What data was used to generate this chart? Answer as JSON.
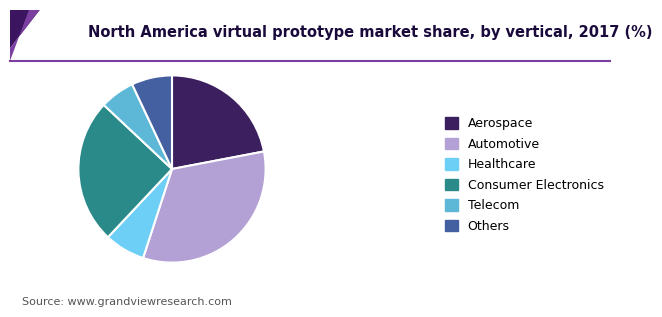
{
  "title": "North America virtual prototype market share, by vertical, 2017 (%)",
  "source": "Source: www.grandviewresearch.com",
  "labels": [
    "Aerospace",
    "Automotive",
    "Healthcare",
    "Consumer Electronics",
    "Telecom",
    "Others"
  ],
  "values": [
    22,
    33,
    7,
    25,
    6,
    7
  ],
  "colors": [
    "#3b1f5e",
    "#b3a0d4",
    "#6dcff6",
    "#2a8a8a",
    "#5db8d8",
    "#4560a0"
  ],
  "startangle": 90,
  "background_color": "#ffffff",
  "title_color": "#1a0a3c",
  "header_line_color": "#7b3fa0",
  "source_fontsize": 8,
  "title_fontsize": 10.5,
  "legend_fontsize": 9,
  "wedge_edgecolor": "#ffffff",
  "wedge_linewidth": 1.5
}
